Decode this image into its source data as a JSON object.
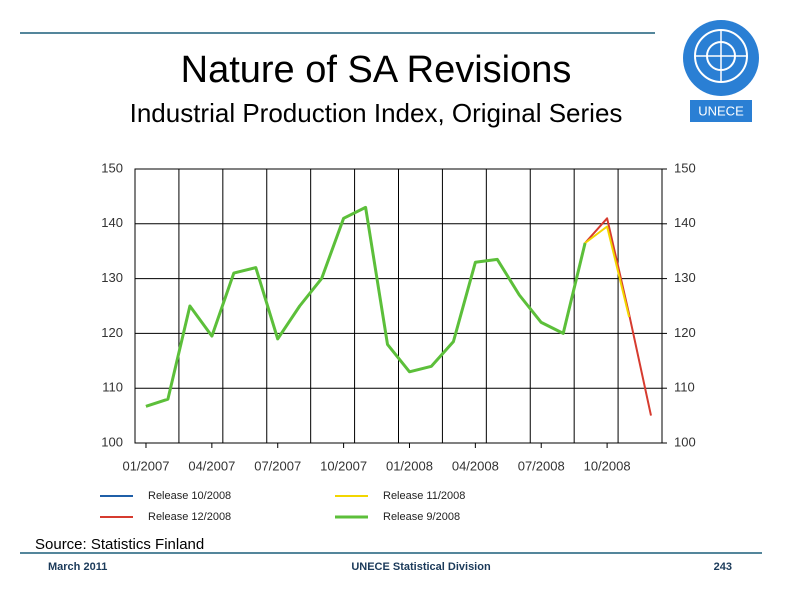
{
  "chart_data": {
    "type": "line",
    "title": "Nature of SA Revisions",
    "subtitle": "Industrial Production Index, Original Series",
    "categories": [
      "01/2007",
      null,
      null,
      "04/2007",
      null,
      null,
      "07/2007",
      null,
      null,
      "10/2007",
      null,
      null,
      "01/2008",
      null,
      null,
      "04/2008",
      null,
      null,
      "07/2008",
      null,
      null,
      "10/2008",
      null,
      null
    ],
    "series": [
      {
        "name": "Release 10/2008",
        "color": "#1f5fa8",
        "values": [
          106.7,
          108,
          125,
          119.5,
          131,
          132,
          119,
          125,
          130,
          141,
          143,
          118,
          113,
          114,
          118.5,
          133,
          133.5,
          127,
          122,
          120,
          136.5,
          null,
          null,
          null
        ]
      },
      {
        "name": "Release 11/2008",
        "color": "#f2d600",
        "values": [
          106.7,
          108,
          125,
          119.5,
          131,
          132,
          119,
          125,
          130,
          141,
          143,
          118,
          113,
          114,
          118.5,
          133,
          133.5,
          127,
          122,
          120,
          136.5,
          139.5,
          123,
          null
        ]
      },
      {
        "name": "Release 12/2008",
        "color": "#d63b2f",
        "values": [
          106.7,
          108,
          125,
          119.5,
          131,
          132,
          119,
          125,
          130,
          141,
          143,
          118,
          113,
          114,
          118.5,
          133,
          133.5,
          127,
          122,
          120,
          136.5,
          141,
          123.5,
          105
        ]
      },
      {
        "name": "Release 9/2008",
        "color": "#5cbf3a",
        "values": [
          106.7,
          108,
          125,
          119.5,
          131,
          132,
          119,
          125,
          130,
          141,
          143,
          118,
          113,
          114,
          118.5,
          133,
          133.5,
          127,
          122,
          120,
          136.5,
          null,
          null,
          null
        ]
      }
    ],
    "ylim": [
      100,
      150
    ],
    "yticks": [
      100,
      110,
      120,
      130,
      140,
      150
    ],
    "y2lim": [
      100,
      150
    ],
    "y2ticks": [
      100,
      110,
      120,
      130,
      140,
      150
    ],
    "grid": true
  },
  "logo_text": "UNECE",
  "source": "Source: Statistics Finland",
  "footer": {
    "left": "March 2011",
    "center": "UNECE Statistical Division",
    "right": "243"
  }
}
